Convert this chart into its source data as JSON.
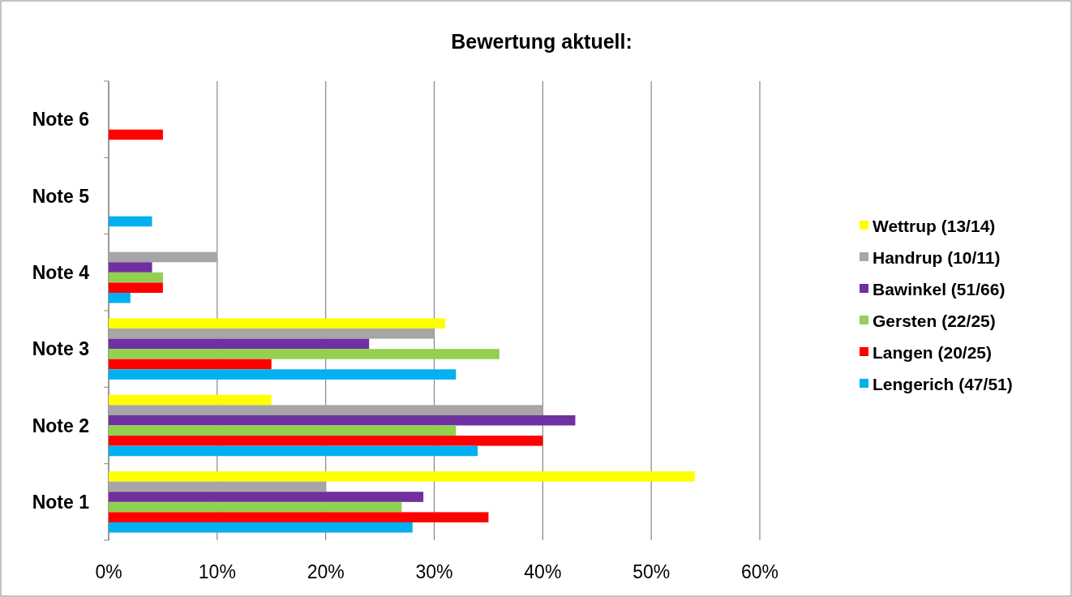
{
  "chart_data": {
    "type": "bar",
    "orientation": "horizontal",
    "title": "Bewertung aktuell:",
    "categories": [
      "Note 6",
      "Note 5",
      "Note 4",
      "Note 3",
      "Note 2",
      "Note 1"
    ],
    "series": [
      {
        "name": "Wettrup (13/14)",
        "color": "#ffff00",
        "values": [
          0,
          0,
          0,
          31,
          15,
          54
        ]
      },
      {
        "name": "Handrup (10/11)",
        "color": "#a6a6a6",
        "values": [
          0,
          0,
          10,
          30,
          40,
          20
        ]
      },
      {
        "name": "Bawinkel (51/66)",
        "color": "#7030a0",
        "values": [
          0,
          0,
          4,
          24,
          43,
          29
        ]
      },
      {
        "name": "Gersten (22/25)",
        "color": "#92d050",
        "values": [
          0,
          0,
          5,
          36,
          32,
          27
        ]
      },
      {
        "name": "Langen (20/25)",
        "color": "#ff0000",
        "values": [
          5,
          0,
          5,
          15,
          40,
          35
        ]
      },
      {
        "name": "Lengerich (47/51)",
        "color": "#00b0f0",
        "values": [
          0,
          4,
          2,
          32,
          34,
          28
        ]
      }
    ],
    "xlim": [
      0,
      60
    ],
    "xticks": [
      {
        "value": 0,
        "label": "0%"
      },
      {
        "value": 10,
        "label": "10%"
      },
      {
        "value": 20,
        "label": "20%"
      },
      {
        "value": 30,
        "label": "30%"
      },
      {
        "value": 40,
        "label": "40%"
      },
      {
        "value": 50,
        "label": "50%"
      },
      {
        "value": 60,
        "label": "60%"
      }
    ],
    "grid": "x",
    "legend": "right"
  }
}
